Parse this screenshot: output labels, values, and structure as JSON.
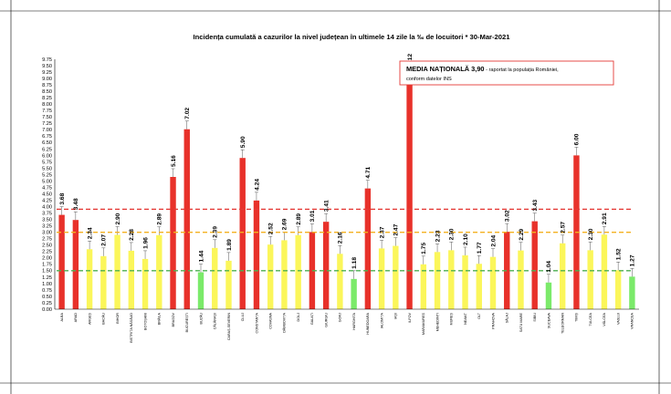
{
  "chart_data": {
    "type": "bar",
    "title": "Incidența cumulată a cazurilor la nivel județean în ultimele 14 zile la ‰ de locuitori * 30-Mar-2021",
    "xlabel": "",
    "ylabel": "",
    "ylim": [
      0,
      9.75
    ],
    "y_ticks": [
      "0.00",
      "0.25",
      "0.50",
      "0.75",
      "1.00",
      "1.25",
      "1.50",
      "1.75",
      "2.00",
      "2.25",
      "2.50",
      "2.75",
      "3.00",
      "3.25",
      "3.50",
      "3.75",
      "4.00",
      "4.25",
      "4.50",
      "4.75",
      "5.00",
      "5.25",
      "5.50",
      "5.75",
      "6.00",
      "6.25",
      "6.50",
      "6.75",
      "7.00",
      "7.25",
      "7.50",
      "7.75",
      "8.00",
      "8.25",
      "8.50",
      "8.75",
      "9.00",
      "9.25",
      "9.50",
      "9.75"
    ],
    "grid": false,
    "legend": "none",
    "categories": [
      "ALBA",
      "ARAD",
      "ARGEȘ",
      "BACĂU",
      "BIHOR",
      "BISTRIȚA NĂSĂUD",
      "BOTOȘANI",
      "BRĂILA",
      "BRAȘOV",
      "BUCUREȘTI",
      "BUZĂU",
      "CĂLĂRAȘI",
      "CARAȘ-SEVERIN",
      "CLUJ",
      "CONSTANȚA",
      "COVASNA",
      "DÂMBOVIȚA",
      "DOLJ",
      "GALAȚI",
      "GIURGIU",
      "GORJ",
      "HARGHITA",
      "HUNEDOARA",
      "IALOMIȚA",
      "IAȘI",
      "ILFOV",
      "MARAMUREȘ",
      "MEHEDINȚI",
      "MUREȘ",
      "NEAMȚ",
      "OLT",
      "PRAHOVA",
      "SĂLAJ",
      "SATU MARE",
      "SIBIU",
      "SUCEAVA",
      "TELEORMAN",
      "TIMIȘ",
      "TULCEA",
      "VÂLCEA",
      "VASLUI",
      "VRANCEA"
    ],
    "values": [
      3.68,
      3.48,
      2.34,
      2.07,
      2.9,
      2.28,
      1.96,
      2.89,
      5.16,
      7.02,
      1.44,
      2.39,
      1.89,
      5.9,
      4.24,
      2.52,
      2.69,
      2.89,
      3.01,
      3.41,
      2.16,
      1.18,
      4.71,
      2.37,
      2.47,
      9.12,
      1.75,
      2.23,
      2.3,
      2.1,
      1.77,
      2.04,
      3.02,
      2.29,
      3.43,
      1.04,
      2.57,
      6.0,
      2.3,
      2.91,
      1.52,
      1.27
    ],
    "value_labels": [
      "3.68",
      "3.48",
      "2.34",
      "2.07",
      "2.90",
      "2.28",
      "1.96",
      "2.89",
      "5.16",
      "7.02",
      "1.44",
      "2.39",
      "1.89",
      "5.90",
      "4.24",
      "2.52",
      "2.69",
      "2.89",
      "3.01",
      "3.41",
      "2.16",
      "1.18",
      "4.71",
      "2.37",
      "2.47",
      "9.12",
      "1.75",
      "2.23",
      "2.30",
      "2.10",
      "1.77",
      "2.04",
      "3.02",
      "2.29",
      "3.43",
      "1.04",
      "2.57",
      "6.00",
      "2.30",
      "2.91",
      "1.52",
      "1.27"
    ],
    "thresholds": [
      {
        "value": 3.9,
        "color": "#e53935"
      },
      {
        "value": 3.0,
        "color": "#f4b120"
      },
      {
        "value": 1.5,
        "color": "#4caf50"
      }
    ],
    "colors": {
      "red": "#e8312a",
      "yellow": "#fbf65a",
      "green": "#7bea6a",
      "error_bar": "#555555"
    },
    "annotation": {
      "strong": "MEDIA NAȚIONALĂ  3,90",
      "rest": " - raportat la populația României,",
      "line2": "conform datelor INS",
      "border_color": "#e53935"
    }
  }
}
